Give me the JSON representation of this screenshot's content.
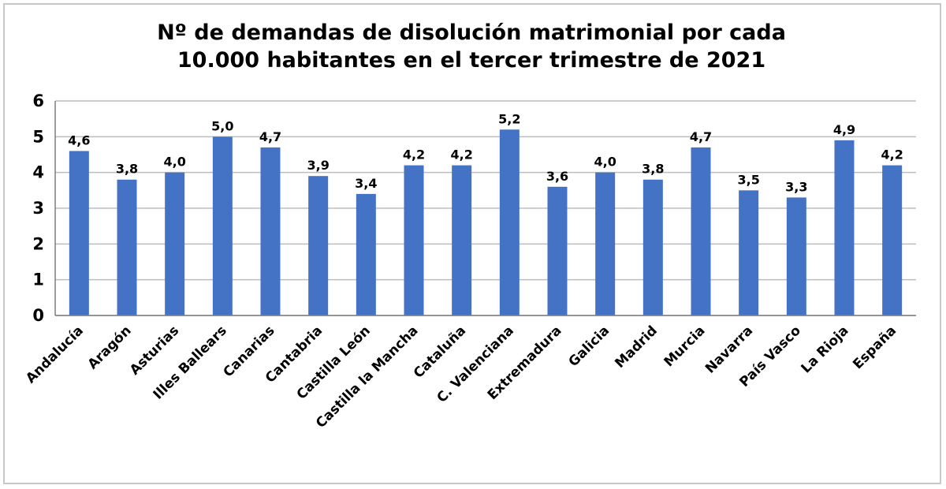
{
  "chart_data": {
    "type": "bar",
    "title_lines": [
      "Nº de demandas de disolución matrimonial por cada",
      "10.000 habitantes en el tercer trimestre de 2021"
    ],
    "categories": [
      "Andalucía",
      "Aragón",
      "Asturias",
      "Illes Ballears",
      "Canarias",
      "Cantabria",
      "Castilla León",
      "Castilla la Mancha",
      "Cataluña",
      "C. Valenciana",
      "Extremadura",
      "Galicia",
      "Madrid",
      "Murcia",
      "Navarra",
      "País Vasco",
      "La Rioja",
      "España"
    ],
    "values": [
      4.6,
      3.8,
      4.0,
      5.0,
      4.7,
      3.9,
      3.4,
      4.2,
      4.2,
      5.2,
      3.6,
      4.0,
      3.8,
      4.7,
      3.5,
      3.3,
      4.9,
      4.2
    ],
    "data_labels": [
      "4,6",
      "3,8",
      "4,0",
      "5,0",
      "4,7",
      "3,9",
      "3,4",
      "4,2",
      "4,2",
      "5,2",
      "3,6",
      "4,0",
      "3,8",
      "4,7",
      "3,5",
      "3,3",
      "4,9",
      "4,2"
    ],
    "y_ticks": [
      "0",
      "1",
      "2",
      "3",
      "4",
      "5",
      "6"
    ],
    "ylim": [
      0,
      6
    ],
    "grid": true,
    "bar_color": "#4472c4",
    "xlabel": "",
    "ylabel": ""
  }
}
